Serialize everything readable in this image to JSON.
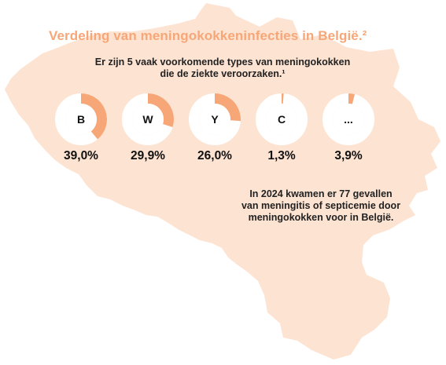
{
  "colors": {
    "map_fill": "#fde3d2",
    "accent": "#f7a777",
    "donut_track": "#ffffff",
    "text": "#222222"
  },
  "chart_data": {
    "type": "pie",
    "title": "Verdeling van meningokokkeninfecties in België.²",
    "subtitle_lines": [
      "Er zijn 5 vaak voorkomende types van meningokokken",
      "die de ziekte veroorzaken.¹"
    ],
    "categories": [
      "B",
      "W",
      "Y",
      "C",
      "..."
    ],
    "values": [
      39.0,
      29.9,
      26.0,
      1.3,
      3.9
    ],
    "value_labels": [
      "39,0%",
      "29,9%",
      "26,0%",
      "1,3%",
      "3,9%"
    ],
    "annotation_lines": [
      "In 2024 kwamen er 77 gevallen",
      "van meningitis of septicemie door",
      "meningokokken voor in België."
    ]
  }
}
